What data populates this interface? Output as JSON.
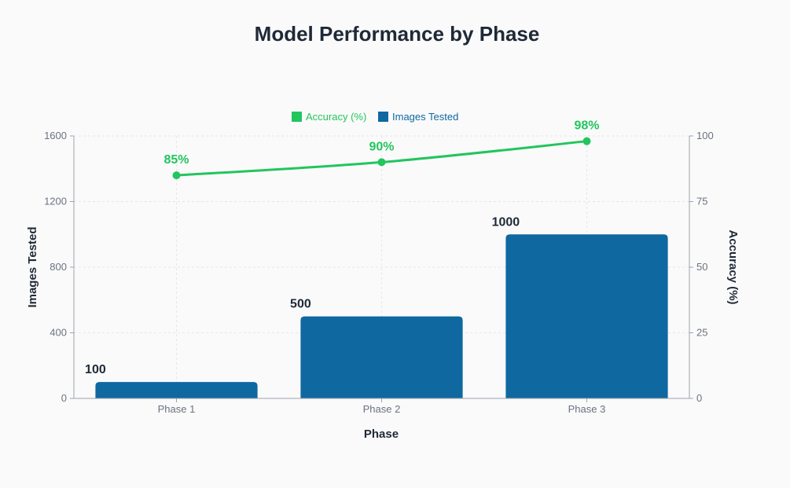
{
  "chart_data": {
    "type": "bar",
    "title": "Model Performance by Phase",
    "xlabel": "Phase",
    "categories": [
      "Phase 1",
      "Phase 2",
      "Phase 3"
    ],
    "y_left": {
      "label": "Images Tested",
      "ylim": [
        0,
        1600
      ],
      "ticks": [
        0,
        400,
        800,
        1200,
        1600
      ]
    },
    "y_right": {
      "label": "Accuracy (%)",
      "ylim": [
        0,
        100
      ],
      "ticks": [
        0,
        25,
        50,
        75,
        100
      ]
    },
    "series": [
      {
        "name": "Images Tested",
        "type": "bar",
        "axis": "left",
        "values": [
          100,
          500,
          1000
        ],
        "labels": [
          "100",
          "500",
          "1000"
        ],
        "color": "#0f68a0"
      },
      {
        "name": "Accuracy (%)",
        "type": "line",
        "axis": "right",
        "values": [
          85,
          90,
          98
        ],
        "labels": [
          "85%",
          "90%",
          "98%"
        ],
        "color": "#22c55e"
      }
    ],
    "legend_position": "top-center",
    "grid": true
  }
}
